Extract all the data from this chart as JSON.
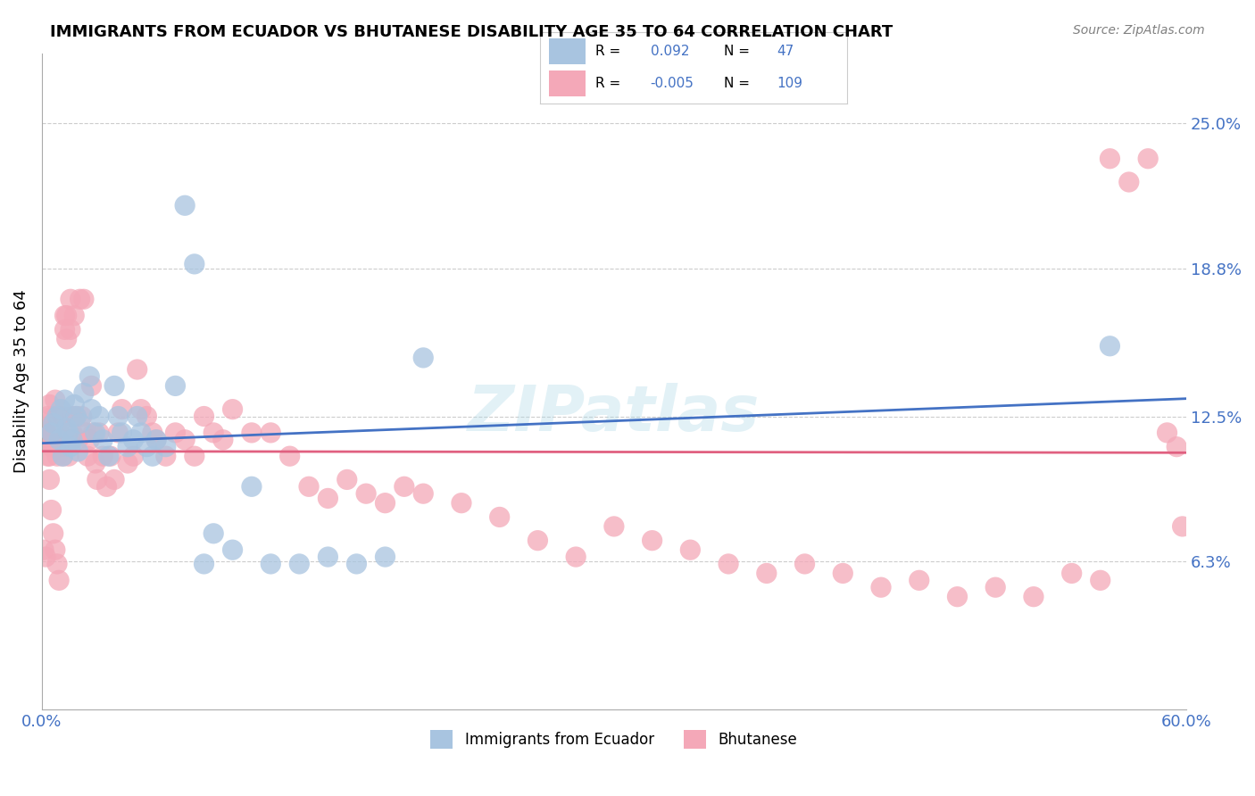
{
  "title": "IMMIGRANTS FROM ECUADOR VS BHUTANESE DISABILITY AGE 35 TO 64 CORRELATION CHART",
  "source": "Source: ZipAtlas.com",
  "ylabel": "Disability Age 35 to 64",
  "y_ticks": [
    0.063,
    0.125,
    0.188,
    0.25
  ],
  "y_tick_labels": [
    "6.3%",
    "12.5%",
    "18.8%",
    "25.0%"
  ],
  "x_lim": [
    0.0,
    0.6
  ],
  "y_lim": [
    0.0,
    0.28
  ],
  "R_ecuador": 0.092,
  "N_ecuador": 47,
  "R_bhutanese": -0.005,
  "N_bhutanese": 109,
  "color_ecuador": "#a8c4e0",
  "color_bhutanese": "#f4a8b8",
  "color_line_ecuador": "#4472c4",
  "color_line_bhutanese": "#e06080",
  "color_text_blue": "#4472c4",
  "background_color": "#ffffff",
  "grid_color": "#cccccc",
  "ecuador_x": [
    0.005,
    0.006,
    0.008,
    0.009,
    0.01,
    0.011,
    0.012,
    0.013,
    0.014,
    0.015,
    0.016,
    0.017,
    0.018,
    0.019,
    0.02,
    0.022,
    0.025,
    0.026,
    0.028,
    0.03,
    0.032,
    0.035,
    0.038,
    0.04,
    0.042,
    0.045,
    0.048,
    0.05,
    0.052,
    0.055,
    0.058,
    0.06,
    0.065,
    0.07,
    0.075,
    0.08,
    0.085,
    0.09,
    0.1,
    0.11,
    0.12,
    0.135,
    0.15,
    0.165,
    0.18,
    0.2,
    0.56
  ],
  "ecuador_y": [
    0.118,
    0.122,
    0.125,
    0.115,
    0.128,
    0.108,
    0.132,
    0.12,
    0.118,
    0.112,
    0.115,
    0.13,
    0.125,
    0.11,
    0.122,
    0.135,
    0.142,
    0.128,
    0.118,
    0.125,
    0.115,
    0.108,
    0.138,
    0.125,
    0.118,
    0.112,
    0.115,
    0.125,
    0.118,
    0.112,
    0.108,
    0.115,
    0.112,
    0.138,
    0.215,
    0.19,
    0.062,
    0.075,
    0.068,
    0.095,
    0.062,
    0.062,
    0.065,
    0.062,
    0.065,
    0.15,
    0.155
  ],
  "bhutanese_x": [
    0.001,
    0.002,
    0.003,
    0.003,
    0.004,
    0.004,
    0.005,
    0.005,
    0.005,
    0.006,
    0.006,
    0.007,
    0.007,
    0.008,
    0.008,
    0.009,
    0.009,
    0.01,
    0.01,
    0.011,
    0.011,
    0.012,
    0.012,
    0.013,
    0.013,
    0.014,
    0.014,
    0.015,
    0.015,
    0.016,
    0.016,
    0.017,
    0.018,
    0.019,
    0.02,
    0.021,
    0.022,
    0.023,
    0.024,
    0.025,
    0.026,
    0.027,
    0.028,
    0.029,
    0.03,
    0.032,
    0.034,
    0.036,
    0.038,
    0.04,
    0.042,
    0.045,
    0.048,
    0.05,
    0.052,
    0.055,
    0.058,
    0.06,
    0.065,
    0.07,
    0.075,
    0.08,
    0.085,
    0.09,
    0.095,
    0.1,
    0.11,
    0.12,
    0.13,
    0.14,
    0.15,
    0.16,
    0.17,
    0.18,
    0.19,
    0.2,
    0.22,
    0.24,
    0.26,
    0.28,
    0.3,
    0.32,
    0.34,
    0.36,
    0.38,
    0.4,
    0.42,
    0.44,
    0.46,
    0.48,
    0.5,
    0.52,
    0.54,
    0.555,
    0.56,
    0.57,
    0.58,
    0.59,
    0.595,
    0.598,
    0.001,
    0.002,
    0.003,
    0.004,
    0.005,
    0.006,
    0.007,
    0.008,
    0.009
  ],
  "bhutanese_y": [
    0.12,
    0.118,
    0.125,
    0.115,
    0.13,
    0.108,
    0.115,
    0.112,
    0.118,
    0.125,
    0.115,
    0.132,
    0.118,
    0.115,
    0.108,
    0.125,
    0.118,
    0.112,
    0.115,
    0.108,
    0.125,
    0.168,
    0.162,
    0.158,
    0.168,
    0.115,
    0.108,
    0.175,
    0.162,
    0.125,
    0.118,
    0.168,
    0.125,
    0.115,
    0.175,
    0.125,
    0.175,
    0.118,
    0.108,
    0.115,
    0.138,
    0.118,
    0.105,
    0.098,
    0.118,
    0.108,
    0.095,
    0.108,
    0.098,
    0.118,
    0.128,
    0.105,
    0.108,
    0.145,
    0.128,
    0.125,
    0.118,
    0.115,
    0.108,
    0.118,
    0.115,
    0.108,
    0.125,
    0.118,
    0.115,
    0.128,
    0.118,
    0.118,
    0.108,
    0.095,
    0.09,
    0.098,
    0.092,
    0.088,
    0.095,
    0.092,
    0.088,
    0.082,
    0.072,
    0.065,
    0.078,
    0.072,
    0.068,
    0.062,
    0.058,
    0.062,
    0.058,
    0.052,
    0.055,
    0.048,
    0.052,
    0.048,
    0.058,
    0.055,
    0.235,
    0.225,
    0.235,
    0.118,
    0.112,
    0.078,
    0.068,
    0.065,
    0.108,
    0.098,
    0.085,
    0.075,
    0.068,
    0.062,
    0.055
  ]
}
